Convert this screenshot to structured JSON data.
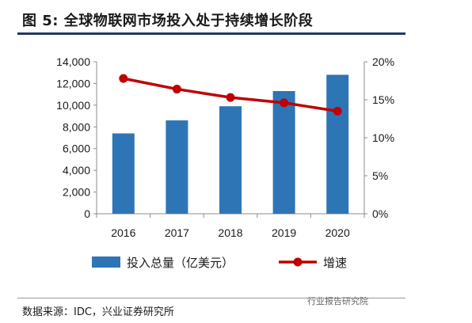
{
  "title": "图 5: 全球物联网市场投入处于持续增长阶段",
  "source": "数据来源：IDC，兴业证券研究所",
  "watermark": "行业报告研究院",
  "chart_data": {
    "type": "bar",
    "categories": [
      "2016",
      "2017",
      "2018",
      "2019",
      "2020"
    ],
    "series": [
      {
        "name": "投入总量（亿美元）",
        "type": "bar",
        "axis": "left",
        "color": "#2e75b6",
        "values": [
          7400,
          8600,
          9900,
          11300,
          12800
        ]
      },
      {
        "name": "增速",
        "type": "line",
        "axis": "right",
        "color": "#c00000",
        "values": [
          17.8,
          16.4,
          15.3,
          14.6,
          13.5
        ]
      }
    ],
    "ylim": [
      0,
      14000
    ],
    "yticks": [
      "0",
      "2,000",
      "4,000",
      "6,000",
      "8,000",
      "10,000",
      "12,000",
      "14,000"
    ],
    "y2lim": [
      0,
      20
    ],
    "y2ticks": [
      "0%",
      "5%",
      "10%",
      "15%",
      "20%"
    ],
    "legend_position": "bottom",
    "grid": false
  }
}
